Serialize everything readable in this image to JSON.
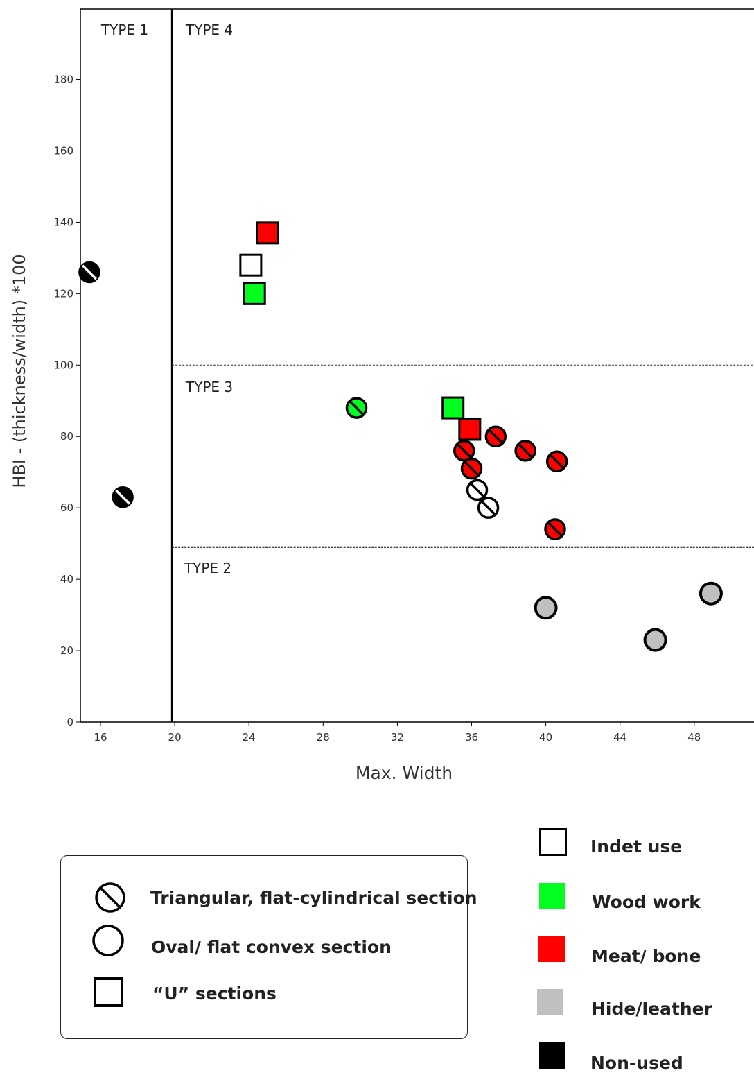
{
  "chart_data": {
    "type": "scatter",
    "xlabel": "Max. Width",
    "ylabel": "HBI - (thickness/width) *100",
    "xlim": [
      14.5,
      50.5
    ],
    "ylim": [
      0,
      200
    ],
    "x_ticks": [
      16,
      20,
      24,
      28,
      32,
      36,
      40,
      44,
      48
    ],
    "y_ticks": [
      0,
      20,
      40,
      60,
      80,
      100,
      120,
      140,
      160,
      180
    ],
    "regions": [
      {
        "label": "TYPE 1"
      },
      {
        "label": "TYPE 4"
      },
      {
        "label": "TYPE 3"
      },
      {
        "label": "TYPE 2"
      }
    ],
    "boundaries": {
      "vertical_x": 20,
      "type4_type3_y": 100,
      "type3_type2_y": 49
    },
    "grid": false,
    "points": [
      {
        "x": 15.4,
        "y": 126,
        "shape": "triangular",
        "use": "non-used"
      },
      {
        "x": 17.2,
        "y": 63,
        "shape": "triangular",
        "use": "non-used"
      },
      {
        "x": 25.0,
        "y": 137,
        "shape": "u",
        "use": "meat"
      },
      {
        "x": 24.1,
        "y": 128,
        "shape": "u",
        "use": "indet"
      },
      {
        "x": 24.3,
        "y": 120,
        "shape": "u",
        "use": "wood"
      },
      {
        "x": 29.8,
        "y": 88,
        "shape": "triangular",
        "use": "wood"
      },
      {
        "x": 35.0,
        "y": 88,
        "shape": "u",
        "use": "wood"
      },
      {
        "x": 35.9,
        "y": 82,
        "shape": "u",
        "use": "meat"
      },
      {
        "x": 37.3,
        "y": 80,
        "shape": "triangular",
        "use": "meat"
      },
      {
        "x": 38.9,
        "y": 76,
        "shape": "triangular",
        "use": "meat"
      },
      {
        "x": 40.6,
        "y": 73,
        "shape": "triangular",
        "use": "meat"
      },
      {
        "x": 35.6,
        "y": 76,
        "shape": "triangular",
        "use": "meat"
      },
      {
        "x": 36.0,
        "y": 71,
        "shape": "triangular",
        "use": "meat"
      },
      {
        "x": 36.3,
        "y": 65,
        "shape": "triangular",
        "use": "indet"
      },
      {
        "x": 36.9,
        "y": 60,
        "shape": "triangular",
        "use": "indet"
      },
      {
        "x": 40.5,
        "y": 54,
        "shape": "triangular",
        "use": "meat"
      },
      {
        "x": 40.0,
        "y": 32,
        "shape": "oval",
        "use": "hide"
      },
      {
        "x": 45.9,
        "y": 23,
        "shape": "oval",
        "use": "hide"
      },
      {
        "x": 48.9,
        "y": 36,
        "shape": "oval",
        "use": "hide"
      }
    ]
  },
  "colors": {
    "indet": "#ffffff",
    "wood": "#00ff1e",
    "meat": "#ff0000",
    "hide": "#c0c0c0",
    "non-used": "#000000",
    "stroke": "#000000"
  },
  "legend_shapes": [
    {
      "label": "Triangular, flat-cylindrical section",
      "icon": "slashed-circle-icon"
    },
    {
      "label": "Oval/ flat convex section",
      "icon": "circle-icon"
    },
    {
      "label": "“U” sections",
      "icon": "square-icon"
    }
  ],
  "legend_uses": [
    {
      "label": "Indet use",
      "use": "indet"
    },
    {
      "label": "Wood work",
      "use": "wood"
    },
    {
      "label": "Meat/ bone",
      "use": "meat"
    },
    {
      "label": "Hide/leather",
      "use": "hide"
    },
    {
      "label": "Non-used",
      "use": "non-used"
    }
  ]
}
